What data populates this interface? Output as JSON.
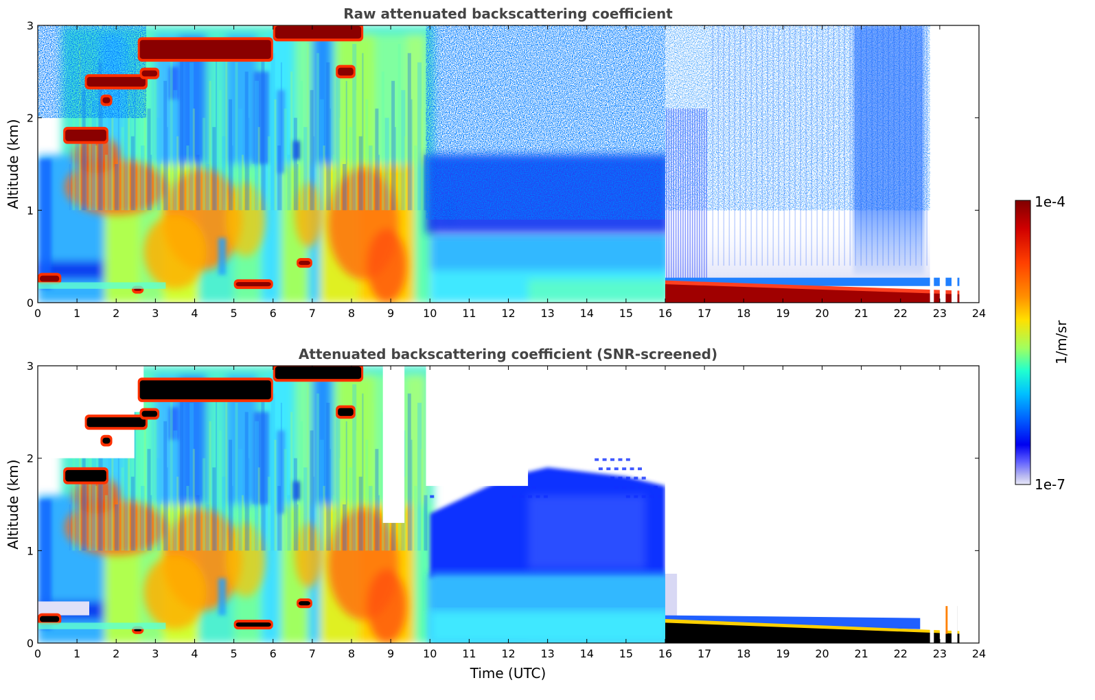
{
  "chart_data": [
    {
      "type": "heatmap",
      "title": "Raw attenuated backscattering coefficient",
      "xlabel": "",
      "ylabel": "Altitude (km)",
      "xlim": [
        0,
        24
      ],
      "ylim": [
        0,
        3
      ],
      "xticks": [
        0,
        1,
        2,
        3,
        4,
        5,
        6,
        7,
        8,
        9,
        10,
        11,
        12,
        13,
        14,
        15,
        16,
        17,
        18,
        19,
        20,
        21,
        22,
        23,
        24
      ],
      "yticks": [
        0,
        1,
        2,
        3
      ],
      "gaps_utc": [
        [
          22.75,
          22.85
        ],
        [
          23.0,
          23.15
        ],
        [
          23.3,
          23.45
        ],
        [
          23.55,
          24.0
        ]
      ]
    },
    {
      "type": "heatmap",
      "title": "Attenuated backscattering coefficient (SNR-screened)",
      "xlabel": "Time (UTC)",
      "ylabel": "Altitude (km)",
      "xlim": [
        0,
        24
      ],
      "ylim": [
        0,
        3
      ],
      "xticks": [
        0,
        1,
        2,
        3,
        4,
        5,
        6,
        7,
        8,
        9,
        10,
        11,
        12,
        13,
        14,
        15,
        16,
        17,
        18,
        19,
        20,
        21,
        22,
        23,
        24
      ],
      "yticks": [
        0,
        1,
        2,
        3
      ],
      "gaps_utc": [
        [
          22.75,
          22.85
        ],
        [
          23.0,
          23.15
        ],
        [
          23.3,
          23.45
        ],
        [
          23.55,
          24.0
        ]
      ]
    }
  ],
  "colorbar": {
    "label": "1/m/sr",
    "max_label": "1e-4",
    "min_label": "1e-7",
    "scale": "log",
    "colormap": "jet",
    "colors": [
      "#e8e8f8",
      "#c8c8f0",
      "#6060ff",
      "#0000ff",
      "#0080ff",
      "#00d0ff",
      "#40ffc0",
      "#c0ff40",
      "#ffe000",
      "#ff8000",
      "#ff2000",
      "#c00000",
      "#800000"
    ]
  }
}
